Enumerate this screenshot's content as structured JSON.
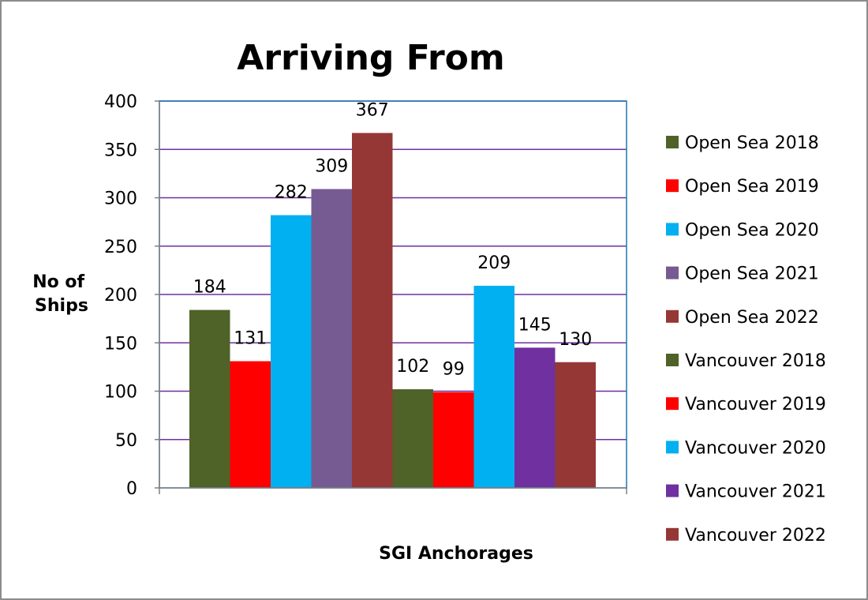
{
  "chart_data": {
    "type": "bar",
    "title": "Arriving From",
    "xlabel": "SGI Anchorages",
    "ylabel_lines": [
      "No of",
      "Ships"
    ],
    "ylim": [
      0,
      400
    ],
    "yticks": [
      0,
      50,
      100,
      150,
      200,
      250,
      300,
      350,
      400
    ],
    "grid": true,
    "legend_position": "right",
    "categories": [
      ""
    ],
    "series": [
      {
        "name": "Open Sea 2018",
        "values": [
          184
        ],
        "color": "#4f6228"
      },
      {
        "name": "Open Sea 2019",
        "values": [
          131
        ],
        "color": "#ff0000"
      },
      {
        "name": "Open Sea 2020",
        "values": [
          282
        ],
        "color": "#00b0f0"
      },
      {
        "name": "Open Sea 2021",
        "values": [
          309
        ],
        "color": "#765a92"
      },
      {
        "name": "Open Sea 2022",
        "values": [
          367
        ],
        "color": "#953735"
      },
      {
        "name": "Vancouver 2018",
        "values": [
          102
        ],
        "color": "#4f6228"
      },
      {
        "name": "Vancouver 2019",
        "values": [
          99
        ],
        "color": "#ff0000"
      },
      {
        "name": "Vancouver 2020",
        "values": [
          209
        ],
        "color": "#00b0f0"
      },
      {
        "name": "Vancouver 2021",
        "values": [
          145
        ],
        "color": "#7030a0"
      },
      {
        "name": "Vancouver 2022",
        "values": [
          130
        ],
        "color": "#953735"
      }
    ],
    "gridline_color": "#7030a0",
    "plot_border_color": "#1f77b4"
  }
}
